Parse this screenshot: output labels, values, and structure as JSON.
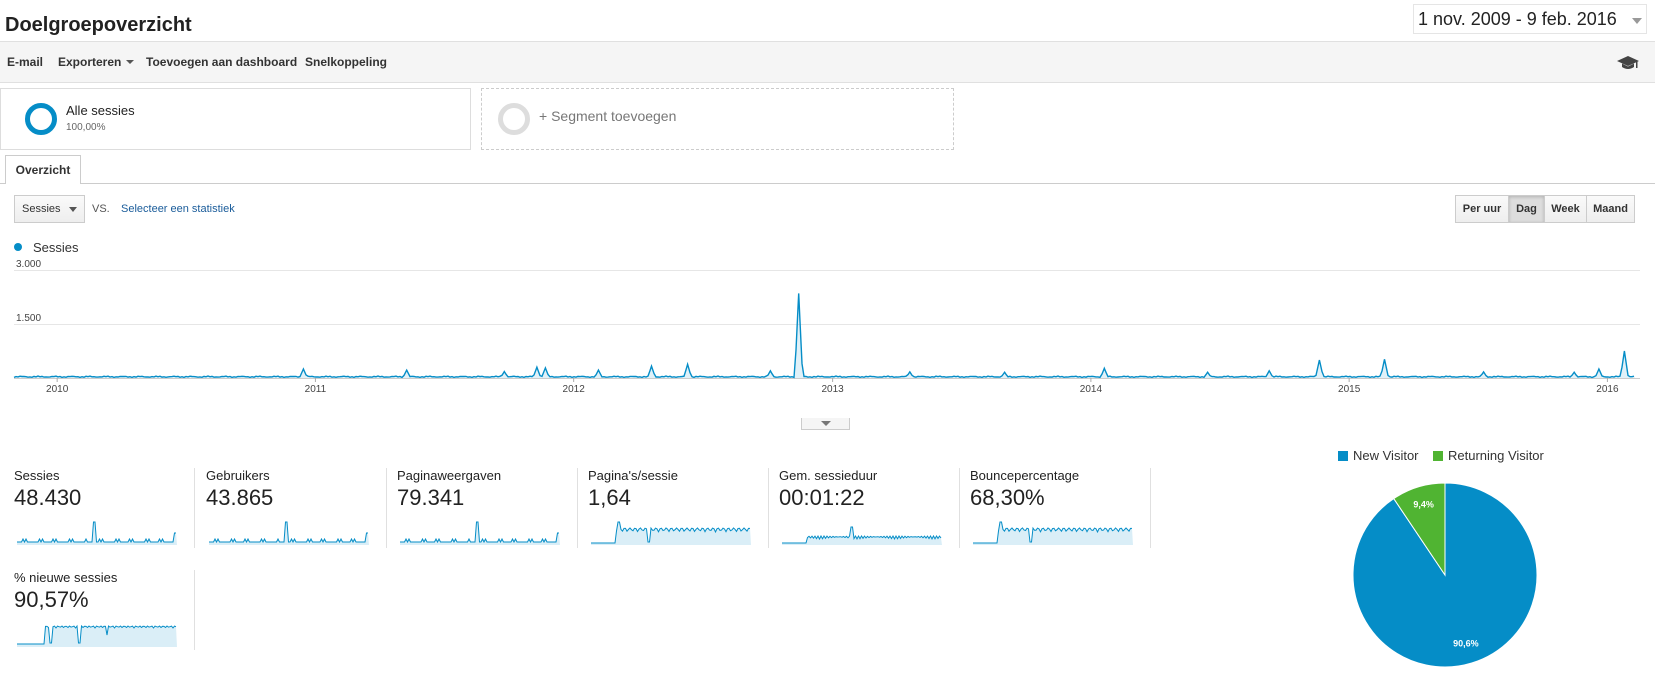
{
  "header": {
    "title": "Doelgroepoverzicht",
    "date_range": "1 nov. 2009 - 9 feb. 2016"
  },
  "toolbar": {
    "email": "E-mail",
    "export": "Exporteren",
    "add_dashboard": "Toevoegen aan dashboard",
    "shortcut": "Snelkoppeling",
    "help_icon": "graduation-cap-icon"
  },
  "segments": {
    "active": {
      "name": "Alle sessies",
      "percent": "100,00%"
    },
    "add_label": "+ Segment toevoegen"
  },
  "tabs": [
    {
      "label": "Overzicht",
      "active": true
    }
  ],
  "controls": {
    "metric": "Sessies",
    "vs": "VS.",
    "select_stat": "Selecteer een statistiek",
    "granularity": [
      {
        "label": "Per uur",
        "active": false
      },
      {
        "label": "Dag",
        "active": true
      },
      {
        "label": "Week",
        "active": false
      },
      {
        "label": "Maand",
        "active": false
      }
    ]
  },
  "chart_data": {
    "type": "line",
    "series_name": "Sessies",
    "color": "#058dc7",
    "y_ticks": [
      "3.000",
      "1.500"
    ],
    "ylim": [
      0,
      3000
    ],
    "x_ticks": [
      "2010",
      "2011",
      "2012",
      "2013",
      "2014",
      "2015",
      "2016"
    ],
    "x_start": "2009-11-01",
    "x_end": "2016-02-09",
    "baseline": 25,
    "spikes": [
      {
        "date": "2010-12-15",
        "value": 250
      },
      {
        "date": "2011-05-10",
        "value": 220
      },
      {
        "date": "2011-09-25",
        "value": 180
      },
      {
        "date": "2011-11-10",
        "value": 300
      },
      {
        "date": "2011-11-22",
        "value": 280
      },
      {
        "date": "2012-02-05",
        "value": 220
      },
      {
        "date": "2012-04-20",
        "value": 330
      },
      {
        "date": "2012-06-10",
        "value": 380
      },
      {
        "date": "2012-10-05",
        "value": 200
      },
      {
        "date": "2012-11-14",
        "value": 2350
      },
      {
        "date": "2013-04-20",
        "value": 170
      },
      {
        "date": "2013-09-01",
        "value": 160
      },
      {
        "date": "2014-01-20",
        "value": 270
      },
      {
        "date": "2014-06-15",
        "value": 160
      },
      {
        "date": "2014-09-10",
        "value": 200
      },
      {
        "date": "2014-11-20",
        "value": 500
      },
      {
        "date": "2015-02-20",
        "value": 520
      },
      {
        "date": "2015-07-10",
        "value": 170
      },
      {
        "date": "2015-11-15",
        "value": 160
      },
      {
        "date": "2015-12-20",
        "value": 250
      },
      {
        "date": "2016-01-25",
        "value": 750
      }
    ]
  },
  "metrics": [
    {
      "label": "Sessies",
      "value": "48.430",
      "spark": "spike"
    },
    {
      "label": "Gebruikers",
      "value": "43.865",
      "spark": "spike"
    },
    {
      "label": "Paginaweergaven",
      "value": "79.341",
      "spark": "spike"
    },
    {
      "label": "Pagina's/sessie",
      "value": "1,64",
      "spark": "plateau"
    },
    {
      "label": "Gem. sessieduur",
      "value": "00:01:22",
      "spark": "low"
    },
    {
      "label": "Bouncepercentage",
      "value": "68,30%",
      "spark": "plateau"
    },
    {
      "label": "% nieuwe sessies",
      "value": "90,57%",
      "spark": "high"
    }
  ],
  "pie": {
    "legend": [
      {
        "label": "New Visitor",
        "color": "#058dc7",
        "value": 90.6,
        "display": "90,6%"
      },
      {
        "label": "Returning Visitor",
        "color": "#50b432",
        "value": 9.4,
        "display": "9,4%"
      }
    ]
  }
}
